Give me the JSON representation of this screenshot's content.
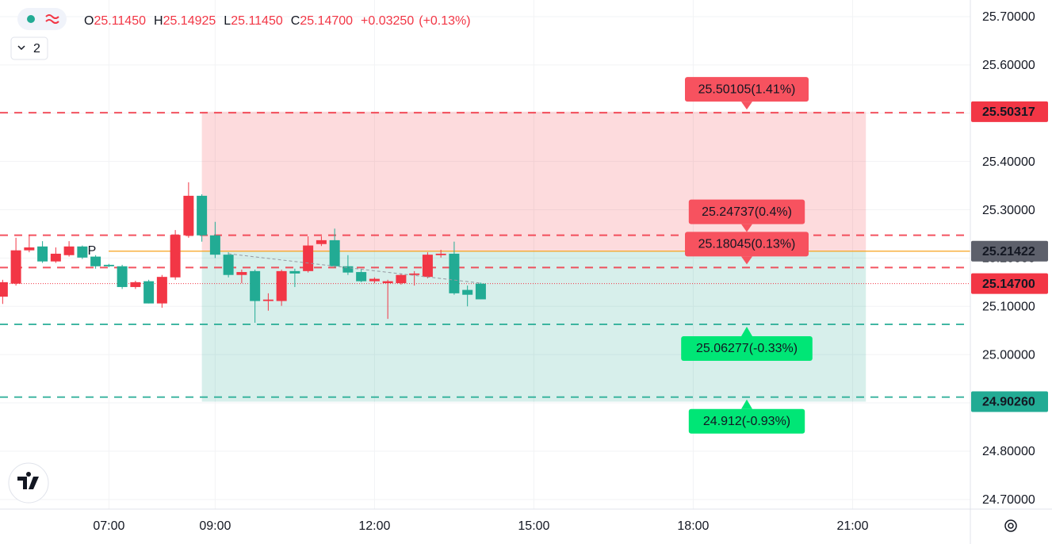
{
  "header": {
    "count": "2",
    "open_label": "O",
    "open": "25.11450",
    "high_label": "H",
    "high": "25.14925",
    "low_label": "L",
    "low": "25.11450",
    "close_label": "C",
    "close": "25.14700",
    "change": "+0.03250",
    "change_pct": "(+0.13%)"
  },
  "chart_data": {
    "type": "candlestick",
    "x": [
      "05:00",
      "05:15",
      "05:30",
      "05:45",
      "06:00",
      "06:15",
      "06:30",
      "06:45",
      "07:00",
      "07:15",
      "07:30",
      "07:45",
      "08:00",
      "08:15",
      "08:30",
      "08:45",
      "09:00",
      "09:15",
      "09:30",
      "09:45",
      "10:00",
      "10:15",
      "10:30",
      "10:45",
      "11:00",
      "11:15",
      "11:30",
      "11:45",
      "12:00",
      "12:15",
      "12:30",
      "12:45",
      "13:00",
      "13:15",
      "13:30",
      "13:45",
      "14:00"
    ],
    "open": [
      25.15,
      25.216,
      25.222,
      25.193,
      25.209,
      25.224,
      25.201,
      25.183,
      25.183,
      25.14,
      25.15,
      25.106,
      25.161,
      25.248,
      25.329,
      25.247,
      25.207,
      25.165,
      25.171,
      25.111,
      25.114,
      25.173,
      25.168,
      25.226,
      25.237,
      25.183,
      25.17,
      25.152,
      25.157,
      25.152,
      25.165,
      25.168,
      25.207,
      25.209,
      25.127,
      25.124,
      25.1145
    ],
    "high": [
      25.155,
      25.242,
      25.248,
      25.235,
      25.222,
      25.235,
      25.226,
      25.206,
      25.188,
      25.186,
      25.153,
      25.155,
      25.165,
      25.258,
      25.357,
      25.332,
      25.275,
      25.212,
      25.176,
      25.176,
      25.127,
      25.176,
      25.178,
      25.245,
      25.245,
      25.261,
      25.206,
      25.176,
      25.16,
      25.155,
      25.168,
      25.173,
      25.212,
      25.217,
      25.234,
      25.143,
      25.14925
    ],
    "low": [
      25.105,
      25.143,
      25.212,
      25.19,
      25.19,
      25.203,
      25.198,
      25.178,
      25.181,
      25.136,
      25.136,
      25.106,
      25.097,
      25.155,
      25.242,
      25.234,
      25.2,
      25.16,
      25.148,
      25.066,
      25.091,
      25.101,
      25.14,
      25.17,
      25.225,
      25.18,
      25.165,
      25.15,
      25.148,
      25.074,
      25.145,
      25.143,
      25.158,
      25.201,
      25.124,
      25.1,
      25.1145
    ],
    "close": [
      25.12,
      25.147,
      25.216,
      25.224,
      25.193,
      25.206,
      25.224,
      25.203,
      25.186,
      25.183,
      25.14,
      25.152,
      25.106,
      25.16,
      25.247,
      25.329,
      25.247,
      25.207,
      25.165,
      25.173,
      25.111,
      25.111,
      25.173,
      25.173,
      25.229,
      25.237,
      25.183,
      25.171,
      25.152,
      25.148,
      25.148,
      25.165,
      25.161,
      25.206,
      25.209,
      25.134,
      25.147
    ],
    "up_color": "#22ab94",
    "down_color": "#f23645",
    "xlim": [
      "04:57",
      "23:13"
    ],
    "xticks": [
      "07:00",
      "09:00",
      "12:00",
      "15:00",
      "18:00",
      "21:00"
    ],
    "ylim": [
      24.68,
      25.7345
    ],
    "yticks": [
      {
        "value": 25.7,
        "label": "25.70000"
      },
      {
        "value": 25.6,
        "label": "25.60000"
      },
      {
        "value": 25.5,
        "label": "25.50000"
      },
      {
        "value": 25.4,
        "label": "25.40000"
      },
      {
        "value": 25.3,
        "label": "25.30000"
      },
      {
        "value": 25.2,
        "label": "25.20000"
      },
      {
        "value": 25.1,
        "label": "25.10000"
      },
      {
        "value": 25.0,
        "label": "25.00000"
      },
      {
        "value": 24.9,
        "label": "24.90000"
      },
      {
        "value": 24.8,
        "label": "24.80000"
      },
      {
        "value": 24.7,
        "label": "24.70000"
      }
    ],
    "grid": true,
    "marker_label": "P",
    "position": {
      "start": "08:45",
      "end": "21:15",
      "entry": 25.21422,
      "target": 25.50317,
      "stop": 24.9026
    },
    "price_tags": [
      {
        "value": 25.50317,
        "label": "25.50317",
        "color": "#f23645"
      },
      {
        "value": 25.21422,
        "label": "25.21422",
        "color": "#5d606b"
      },
      {
        "value": 25.147,
        "label": "25.14700",
        "color": "#f23645"
      },
      {
        "value": 24.9026,
        "label": "24.90260",
        "color": "#22ab94"
      }
    ],
    "levels": [
      {
        "value": 25.50105,
        "label": "25.50105(1.41%)",
        "color": "#f7525f"
      },
      {
        "value": 25.24737,
        "label": "25.24737(0.4%)",
        "color": "#f7525f"
      },
      {
        "value": 25.18045,
        "label": "25.18045(0.13%)",
        "color": "#f7525f"
      },
      {
        "value": 25.06277,
        "label": "25.06277(-0.33%)",
        "color": "#00e676"
      },
      {
        "value": 24.912,
        "label": "24.912(-0.93%)",
        "color": "#00e676"
      }
    ]
  }
}
